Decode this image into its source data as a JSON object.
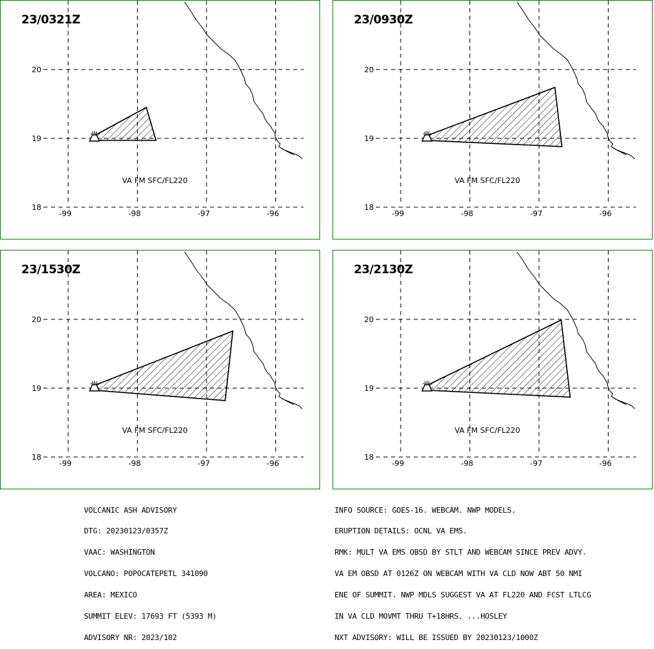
{
  "panels": [
    {
      "title": "23/0321Z",
      "label": "VA FM SFC/FL220",
      "polygon": [
        [
          -98.62,
          19.04
        ],
        [
          -97.87,
          19.45
        ],
        [
          -97.73,
          18.97
        ],
        [
          -98.62,
          18.97
        ]
      ]
    },
    {
      "title": "23/0930Z",
      "label": "VA FM SFC/FL220",
      "polygon": [
        [
          -98.62,
          19.04
        ],
        [
          -96.77,
          19.74
        ],
        [
          -96.67,
          18.88
        ],
        [
          -98.62,
          18.97
        ]
      ]
    },
    {
      "title": "23/1530Z",
      "label": "VA FM SFC/FL220",
      "polygon": [
        [
          -98.62,
          19.04
        ],
        [
          -96.62,
          19.83
        ],
        [
          -96.73,
          18.82
        ],
        [
          -98.62,
          18.97
        ]
      ]
    },
    {
      "title": "23/2130Z",
      "label": "VA FM SFC/FL220",
      "polygon": [
        [
          -98.62,
          19.04
        ],
        [
          -96.68,
          19.99
        ],
        [
          -96.55,
          18.87
        ],
        [
          -98.62,
          18.97
        ]
      ]
    }
  ],
  "axes": {
    "x_ticks": [
      "-99",
      "-98",
      "-97",
      "-96"
    ],
    "y_ticks": [
      "20",
      "19",
      "18"
    ],
    "x_values": [
      -99,
      -98,
      -97,
      -96
    ],
    "y_values": [
      20,
      19,
      18
    ]
  },
  "volcano": {
    "lon": -98.62,
    "lat": 19.02
  },
  "advisory_left": [
    "VOLCANIC ASH ADVISORY",
    "DTG: 20230123/0357Z",
    "VAAC: WASHINGTON",
    "VOLCANO: POPOCATEPETL 341090",
    "AREA: MEXICO",
    "SUMMIT ELEV: 17693 FT (5393 M)",
    "ADVISORY NR: 2023/102"
  ],
  "advisory_right": [
    "INFO SOURCE: GOES-16. WEBCAM. NWP MODELS.",
    "ERUPTION DETAILS: OCNL VA EMS.",
    "RMK: MULT VA EMS OBSD BY STLT AND WEBCAM SINCE PREV ADVY.",
    "VA EM OBSD AT 0126Z ON WEBCAM WITH VA CLD NOW ABT 50 NMI",
    "ENE OF SUMMIT. NWP MDLS SUGGEST VA AT FL220 AND FCST LTLCG",
    "IN VA CLD MOVMT THRU T+18HRS. ...HOSLEY",
    "NXT ADVISORY: WILL BE ISSUED BY 20230123/1000Z"
  ],
  "colors": {
    "frame": "#0a8a0a",
    "ink": "#000000"
  }
}
